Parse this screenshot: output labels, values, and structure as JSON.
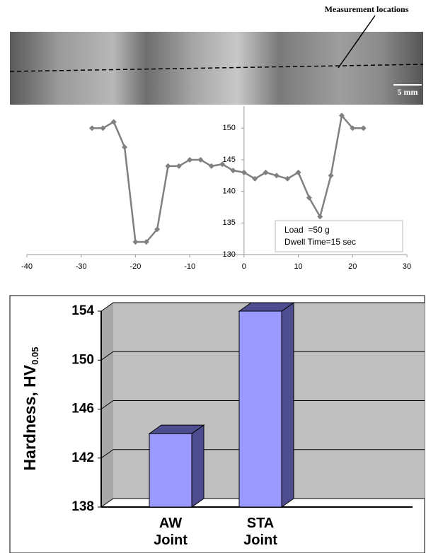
{
  "chart_data": [
    {
      "type": "line",
      "annotations": [
        "Measurement locations",
        "5 mm",
        "Load  =50 g",
        "Dwell Time=15 sec"
      ],
      "x": [
        -28,
        -26,
        -24,
        -22,
        -20,
        -18,
        -16,
        -14,
        -12,
        -10,
        -8,
        -6,
        -4,
        -2,
        0,
        2,
        4,
        6,
        8,
        10,
        12,
        14,
        16,
        18,
        20,
        22
      ],
      "values": [
        150,
        150,
        151,
        147,
        132,
        132,
        134,
        144,
        144,
        145,
        145,
        144,
        144.3,
        143.3,
        143,
        142,
        143,
        142.5,
        142,
        143,
        139,
        136,
        142.5,
        152,
        150,
        150
      ],
      "color": "#808080",
      "xlim": [
        -40,
        30
      ],
      "xticks": [
        -40,
        -30,
        -20,
        -10,
        0,
        10,
        20,
        30
      ],
      "ylim": [
        130,
        153.5
      ],
      "yticks": [
        130,
        135,
        140,
        145,
        150
      ]
    },
    {
      "type": "bar",
      "y_label": "Hardness, HV",
      "y_label_subscript": "0.05",
      "categories": [
        "AW Joint",
        "STA Joint"
      ],
      "values": [
        144,
        154
      ],
      "color": "#9999ff",
      "side_color": "#4d4d8f",
      "ylim": [
        138,
        154
      ],
      "yticks": [
        138,
        142,
        146,
        150,
        154
      ],
      "grid": true
    }
  ]
}
